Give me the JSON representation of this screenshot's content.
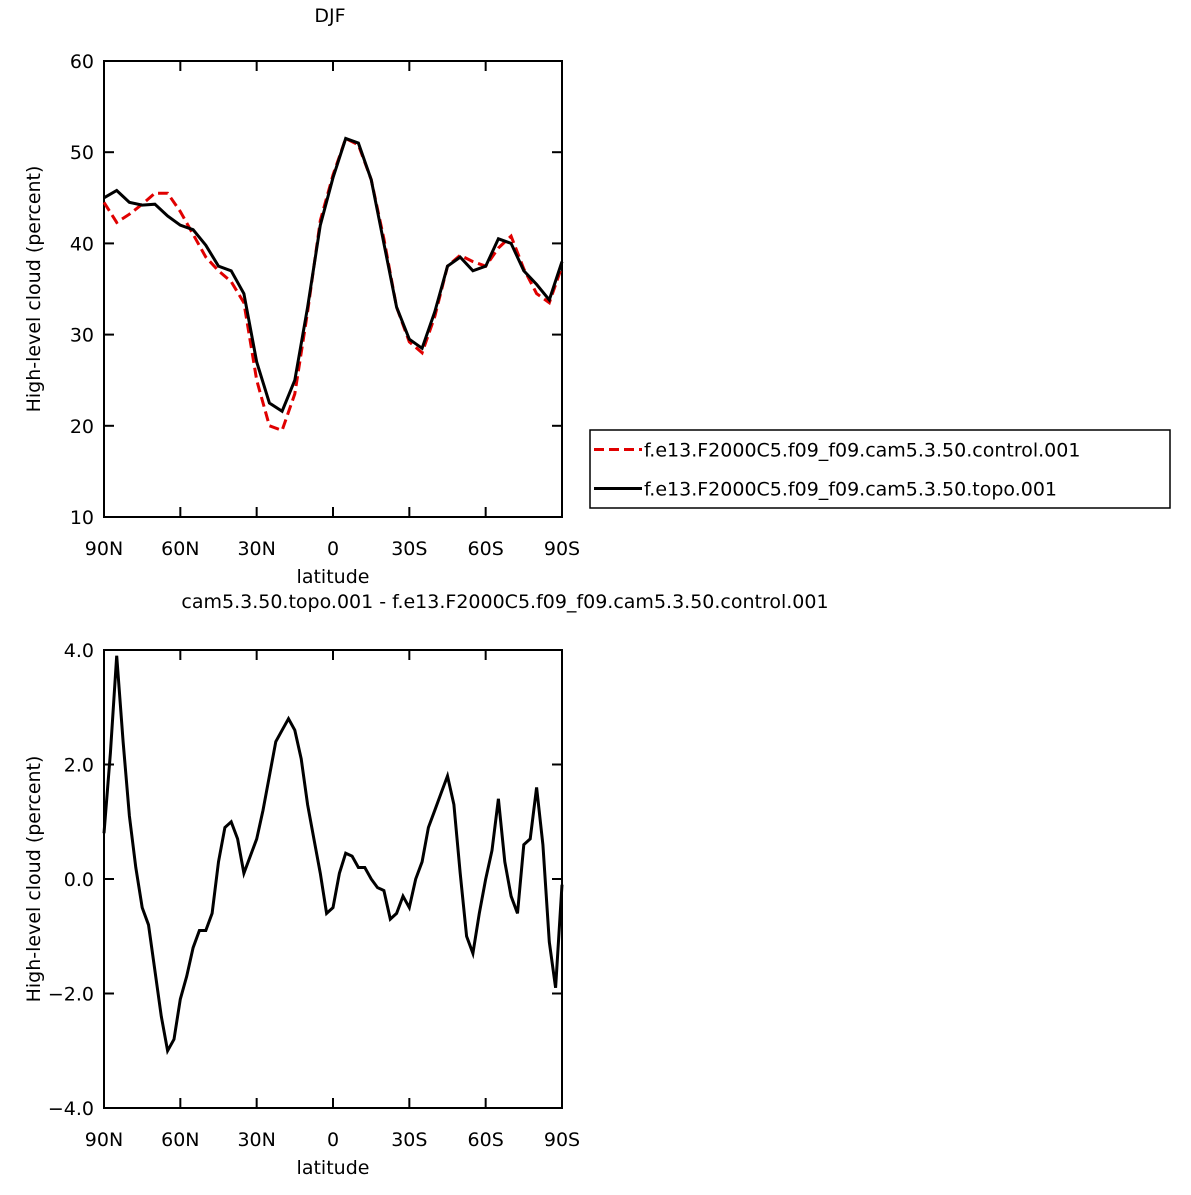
{
  "chart_data": [
    {
      "type": "line",
      "title": "DJF",
      "xlabel": "latitude",
      "ylabel": "High-level cloud (percent)",
      "x": [
        90,
        85,
        80,
        75,
        70,
        65,
        60,
        55,
        50,
        45,
        40,
        35,
        30,
        25,
        20,
        15,
        10,
        5,
        0,
        -5,
        -10,
        -15,
        -20,
        -25,
        -30,
        -35,
        -40,
        -45,
        -50,
        -55,
        -60,
        -65,
        -70,
        -75,
        -80,
        -85,
        -90
      ],
      "series": [
        {
          "name": "f.e13.F2000C5.f09_f09.cam5.3.50.control.001",
          "color": "#e00000",
          "dash": true,
          "values": [
            44.5,
            42.3,
            43.2,
            44.3,
            45.5,
            45.5,
            43.5,
            41,
            38.5,
            37,
            35.8,
            33.5,
            25,
            20,
            19.5,
            23.5,
            32.5,
            42.5,
            47.5,
            51.5,
            50.8,
            47,
            40.5,
            33,
            29.2,
            28.0,
            32,
            37.5,
            38.7,
            38.0,
            37.5,
            39.5,
            40.8,
            37.2,
            34.5,
            33.5,
            37.5
          ]
        },
        {
          "name": "f.e13.F2000C5.f09_f09.cam5.3.50.topo.001",
          "color": "#000000",
          "dash": false,
          "values": [
            45.0,
            45.8,
            44.5,
            44.2,
            44.3,
            43.0,
            42.0,
            41.5,
            39.8,
            37.5,
            37.0,
            34.5,
            27,
            22.5,
            21.6,
            25,
            33,
            42,
            47.2,
            51.5,
            51.0,
            47,
            40,
            33,
            29.5,
            28.5,
            32.5,
            37.5,
            38.5,
            37,
            37.5,
            40.5,
            40.0,
            37,
            35.5,
            33.8,
            38
          ]
        }
      ],
      "xlim": [
        90,
        -90
      ],
      "xticks": [
        {
          "value": 90,
          "label": "90N"
        },
        {
          "value": 60,
          "label": "60N"
        },
        {
          "value": 30,
          "label": "30N"
        },
        0,
        {
          "value": -30,
          "label": "30S"
        },
        {
          "value": -60,
          "label": "60S"
        },
        {
          "value": -90,
          "label": "90S"
        }
      ],
      "ylim": [
        10,
        60
      ],
      "yticks": [
        10,
        20,
        30,
        40,
        50,
        60
      ],
      "legend": "right"
    },
    {
      "type": "line",
      "title": "cam5.3.50.topo.001 - f.e13.F2000C5.f09_f09.cam5.3.50.control.001",
      "xlabel": "latitude",
      "ylabel": "High-level cloud (percent)",
      "x": [
        90,
        87.5,
        85,
        82.5,
        80,
        77.5,
        75,
        72.5,
        70,
        67.5,
        65,
        62.5,
        60,
        57.5,
        55,
        52.5,
        50,
        47.5,
        45,
        42.5,
        40,
        37.5,
        35,
        32.5,
        30,
        27.5,
        25,
        22.5,
        20,
        17.5,
        15,
        12.5,
        10,
        7.5,
        5,
        2.5,
        0,
        -2.5,
        -5,
        -7.5,
        -10,
        -12.5,
        -15,
        -17.5,
        -20,
        -22.5,
        -25,
        -27.5,
        -30,
        -32.5,
        -35,
        -37.5,
        -40,
        -42.5,
        -45,
        -47.5,
        -50,
        -52.5,
        -55,
        -57.5,
        -60,
        -62.5,
        -65,
        -67.5,
        -70,
        -72.5,
        -75,
        -77.5,
        -80,
        -82.5,
        -85,
        -87.5,
        -90
      ],
      "values": [
        0.8,
        2.2,
        3.9,
        2.4,
        1.1,
        0.2,
        -0.5,
        -0.8,
        -1.6,
        -2.4,
        -3.0,
        -2.8,
        -2.1,
        -1.7,
        -1.2,
        -0.9,
        -0.9,
        -0.6,
        0.3,
        0.9,
        1.0,
        0.7,
        0.1,
        0.4,
        0.7,
        1.2,
        1.8,
        2.4,
        2.6,
        2.8,
        2.6,
        2.1,
        1.3,
        0.7,
        0.1,
        -0.6,
        -0.5,
        0.1,
        0.45,
        0.4,
        0.2,
        0.2,
        0.0,
        -0.15,
        -0.2,
        -0.7,
        -0.6,
        -0.3,
        -0.5,
        0.0,
        0.3,
        0.9,
        1.2,
        1.5,
        1.8,
        1.3,
        0.1,
        -1.0,
        -1.3,
        -0.6,
        0.0,
        0.5,
        1.4,
        0.3,
        -0.3,
        -0.6,
        0.6,
        0.7,
        1.6,
        0.6,
        -1.1,
        -1.9,
        -0.1
      ],
      "color": "#000000",
      "xlim": [
        90,
        -90
      ],
      "xticks": [
        {
          "value": 90,
          "label": "90N"
        },
        {
          "value": 60,
          "label": "60N"
        },
        {
          "value": 30,
          "label": "30N"
        },
        0,
        {
          "value": -30,
          "label": "30S"
        },
        {
          "value": -60,
          "label": "60S"
        },
        {
          "value": -90,
          "label": "90S"
        }
      ],
      "ylim": [
        -4,
        4
      ],
      "yticks": [
        {
          "value": -4,
          "label": "−4.0"
        },
        {
          "value": -2,
          "label": "−2.0"
        },
        {
          "value": 0,
          "label": "0.0"
        },
        {
          "value": 2,
          "label": "2.0"
        },
        {
          "value": 4,
          "label": "4.0"
        }
      ]
    }
  ]
}
